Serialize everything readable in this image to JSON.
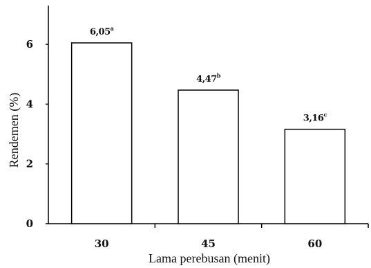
{
  "chart_data": {
    "type": "bar",
    "title": "",
    "xlabel": "Lama perebusan (menit)",
    "ylabel": "Rendemen (%)",
    "categories": [
      "30",
      "45",
      "60"
    ],
    "values": [
      6.05,
      4.47,
      3.16
    ],
    "data_labels": [
      {
        "value": "6,05",
        "sup": "a"
      },
      {
        "value": "4,47",
        "sup": "b"
      },
      {
        "value": "3,16",
        "sup": "c"
      }
    ],
    "yticks": [
      0,
      2,
      4,
      6
    ],
    "ylim": [
      0,
      7.3
    ],
    "grid": false,
    "legend": "none",
    "bar_fill": "#ffffff",
    "bar_stroke": "#000000"
  }
}
